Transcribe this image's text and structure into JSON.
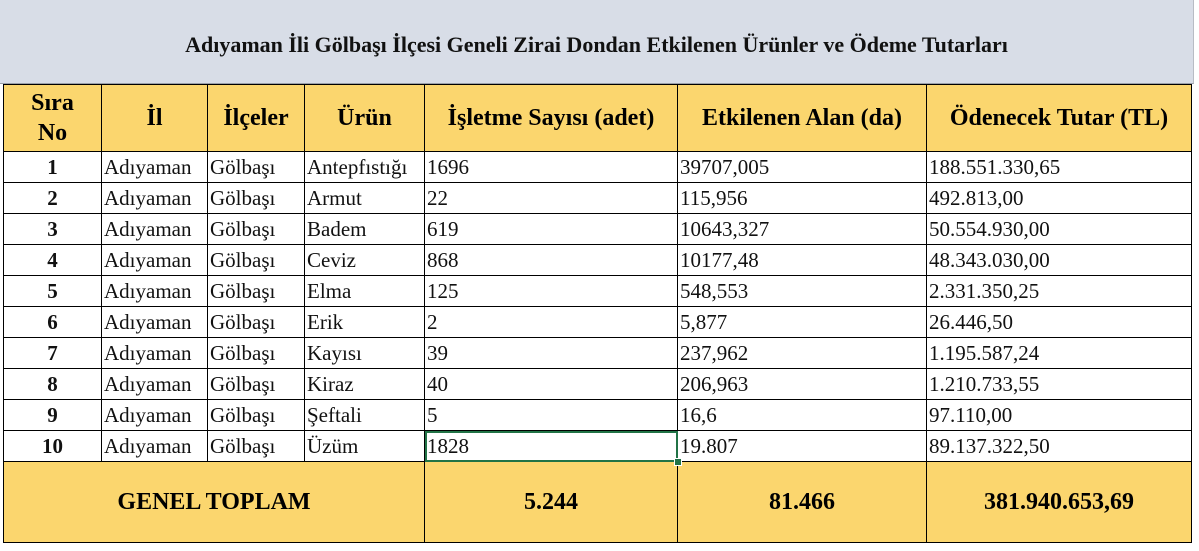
{
  "title": "Adıyaman İli Gölbaşı İlçesi Geneli Zirai Dondan Etkilenen Ürünler ve Ödeme Tutarları",
  "headers": {
    "sira_line1": "Sıra",
    "sira_line2": "No",
    "il": "İl",
    "ilceler": "İlçeler",
    "urun": "Ürün",
    "isletme": "İşletme Sayısı (adet)",
    "alan": "Etkilenen Alan (da)",
    "tutar": "Ödenecek Tutar (TL)"
  },
  "rows": [
    {
      "no": "1",
      "il": "Adıyaman",
      "ilce": "Gölbaşı",
      "urun": "Antepfıstığı",
      "isletme": "1696",
      "alan": "39707,005",
      "tutar": "188.551.330,65"
    },
    {
      "no": "2",
      "il": "Adıyaman",
      "ilce": "Gölbaşı",
      "urun": "Armut",
      "isletme": "22",
      "alan": "115,956",
      "tutar": "492.813,00"
    },
    {
      "no": "3",
      "il": "Adıyaman",
      "ilce": "Gölbaşı",
      "urun": "Badem",
      "isletme": "619",
      "alan": "10643,327",
      "tutar": "50.554.930,00"
    },
    {
      "no": "4",
      "il": "Adıyaman",
      "ilce": "Gölbaşı",
      "urun": "Ceviz",
      "isletme": "868",
      "alan": "10177,48",
      "tutar": "48.343.030,00"
    },
    {
      "no": "5",
      "il": "Adıyaman",
      "ilce": "Gölbaşı",
      "urun": "Elma",
      "isletme": "125",
      "alan": "548,553",
      "tutar": "2.331.350,25"
    },
    {
      "no": "6",
      "il": "Adıyaman",
      "ilce": "Gölbaşı",
      "urun": "Erik",
      "isletme": "2",
      "alan": "5,877",
      "tutar": "26.446,50"
    },
    {
      "no": "7",
      "il": "Adıyaman",
      "ilce": "Gölbaşı",
      "urun": "Kayısı",
      "isletme": "39",
      "alan": "237,962",
      "tutar": "1.195.587,24"
    },
    {
      "no": "8",
      "il": "Adıyaman",
      "ilce": "Gölbaşı",
      "urun": "Kiraz",
      "isletme": "40",
      "alan": "206,963",
      "tutar": "1.210.733,55"
    },
    {
      "no": "9",
      "il": "Adıyaman",
      "ilce": "Gölbaşı",
      "urun": "Şeftali",
      "isletme": "5",
      "alan": "16,6",
      "tutar": "97.110,00"
    },
    {
      "no": "10",
      "il": "Adıyaman",
      "ilce": "Gölbaşı",
      "urun": "Üzüm",
      "isletme": "1828",
      "alan": "19.807",
      "tutar": "89.137.322,50"
    }
  ],
  "total": {
    "label": "GENEL TOPLAM",
    "isletme": "5.244",
    "alan": "81.466",
    "tutar": "381.940.653,69"
  },
  "colors": {
    "header_bg": "#fbd66e",
    "title_bg": "#d8dde7",
    "selection": "#217346"
  }
}
